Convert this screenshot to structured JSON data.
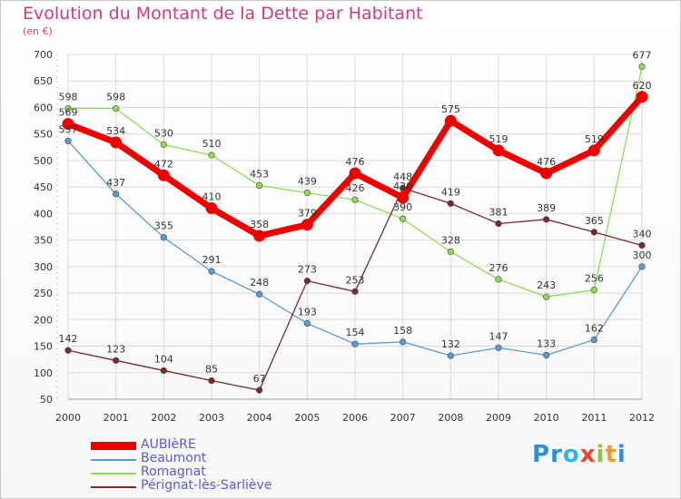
{
  "title": "Evolution du Montant de la Dette par Habitant",
  "subtitle": "(en €)",
  "logo": {
    "letters": [
      "P",
      "r",
      "o",
      "x",
      "i",
      "t",
      "i"
    ],
    "colors": [
      "#2f8fd8",
      "#2f8fd8",
      "#2fb5e6",
      "#e8462e",
      "#8cc63f",
      "#f29b1d",
      "#2f8fd8"
    ]
  },
  "chart_data": {
    "type": "line",
    "x": [
      "2000",
      "2001",
      "2002",
      "2003",
      "2004",
      "2005",
      "2006",
      "2007",
      "2008",
      "2009",
      "2010",
      "2011",
      "2012"
    ],
    "ylim": [
      50,
      700
    ],
    "yticks": [
      50,
      100,
      150,
      200,
      250,
      300,
      350,
      400,
      450,
      500,
      550,
      600,
      650,
      700
    ],
    "grid": true,
    "legend_position": "bottom-left",
    "series": [
      {
        "name": "AUBIèRE",
        "color": "#ee0000",
        "width": 7,
        "values": [
          569,
          534,
          472,
          410,
          358,
          379,
          476,
          430,
          575,
          519,
          476,
          519,
          620
        ],
        "labels": [
          "569",
          "534",
          "472",
          "410",
          "358",
          "379",
          "476",
          "430",
          "575",
          "519",
          "476",
          "519",
          "620"
        ]
      },
      {
        "name": "Beaumont",
        "color": "#5b9bd5",
        "width": 1.3,
        "values": [
          537,
          437,
          355,
          291,
          248,
          193,
          154,
          158,
          132,
          147,
          133,
          162,
          300
        ],
        "labels": [
          "537",
          "437",
          "355",
          "291",
          "248",
          "193",
          "154",
          "158",
          "132",
          "147",
          "133",
          "162",
          "300"
        ]
      },
      {
        "name": "Romagnat",
        "color": "#8fdc55",
        "width": 1.3,
        "values": [
          598,
          598,
          530,
          510,
          453,
          439,
          426,
          390,
          328,
          276,
          243,
          256,
          677
        ],
        "labels": [
          "598",
          "598",
          "530",
          "510",
          "453",
          "439",
          "426",
          "390",
          "328",
          "276",
          "243",
          "256",
          "677"
        ]
      },
      {
        "name": "Pérignat-lès-Sarliève",
        "color": "#7a2a2a",
        "width": 1.3,
        "values": [
          142,
          123,
          104,
          85,
          67,
          273,
          253,
          448,
          419,
          381,
          389,
          365,
          340
        ],
        "labels": [
          "142",
          "123",
          "104",
          "85",
          "67",
          "273",
          "253",
          "448",
          "419",
          "381",
          "389",
          "365",
          "340"
        ]
      }
    ]
  }
}
